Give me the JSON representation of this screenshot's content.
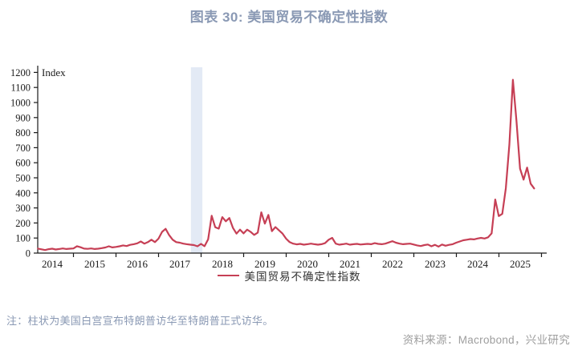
{
  "title": "图表 30: 美国贸易不确定性指数",
  "colors": {
    "title": "#8a99b4",
    "line": "#c63f55",
    "band": "#e3eaf5",
    "axis": "#1a1a1a",
    "note": "#8a99b4",
    "source": "#9e9e9e"
  },
  "legend": {
    "label": "美国贸易不确定性指数"
  },
  "note": "注：柱状为美国白宫宣布特朗普访华至特朗普正式访华。",
  "source": "资料来源：Macrobond，兴业研究",
  "chart_data": {
    "type": "line",
    "title": "图表 30: 美国贸易不确定性指数",
    "ylabel": "Index",
    "xlabel": "",
    "ylim": [
      0,
      1200
    ],
    "y_ticks": [
      0,
      100,
      200,
      300,
      400,
      500,
      600,
      700,
      800,
      900,
      1000,
      1100,
      1200
    ],
    "x_tick_labels": [
      "2014",
      "2015",
      "2016",
      "2017",
      "2018",
      "2019",
      "2020",
      "2021",
      "2022",
      "2023",
      "2024",
      "2025"
    ],
    "x_range_years": [
      2014.17,
      2025.92
    ],
    "grid": false,
    "legend_position": "bottom-center",
    "highlight_band": {
      "x_from": 2017.76,
      "x_to": 2018.03,
      "color": "#e3eaf5"
    },
    "series": [
      {
        "name": "美国贸易不确定性指数",
        "color": "#c63f55",
        "x_start": 2014.1667,
        "x_step_years": 0.0833,
        "values": [
          30,
          25,
          20,
          26,
          29,
          24,
          27,
          31,
          27,
          29,
          31,
          46,
          39,
          30,
          28,
          31,
          27,
          29,
          33,
          37,
          45,
          38,
          41,
          45,
          51,
          47,
          55,
          59,
          65,
          77,
          63,
          73,
          89,
          73,
          96,
          141,
          161,
          119,
          89,
          73,
          69,
          63,
          59,
          56,
          53,
          45,
          61,
          46,
          92,
          248,
          172,
          162,
          239,
          211,
          233,
          167,
          129,
          156,
          131,
          156,
          141,
          121,
          136,
          271,
          196,
          253,
          146,
          173,
          151,
          129,
          96,
          73,
          63,
          58,
          61,
          56,
          59,
          63,
          59,
          56,
          59,
          66,
          89,
          101,
          63,
          56,
          59,
          63,
          56,
          59,
          61,
          57,
          59,
          61,
          59,
          66,
          61,
          59,
          63,
          71,
          79,
          69,
          63,
          59,
          61,
          63,
          57,
          51,
          47,
          53,
          57,
          45,
          55,
          43,
          57,
          49,
          55,
          59,
          69,
          77,
          85,
          89,
          93,
          91,
          97,
          101,
          97,
          105,
          131,
          356,
          246,
          261,
          431,
          721,
          1151,
          881,
          561,
          488,
          568,
          461,
          429
        ]
      }
    ]
  }
}
